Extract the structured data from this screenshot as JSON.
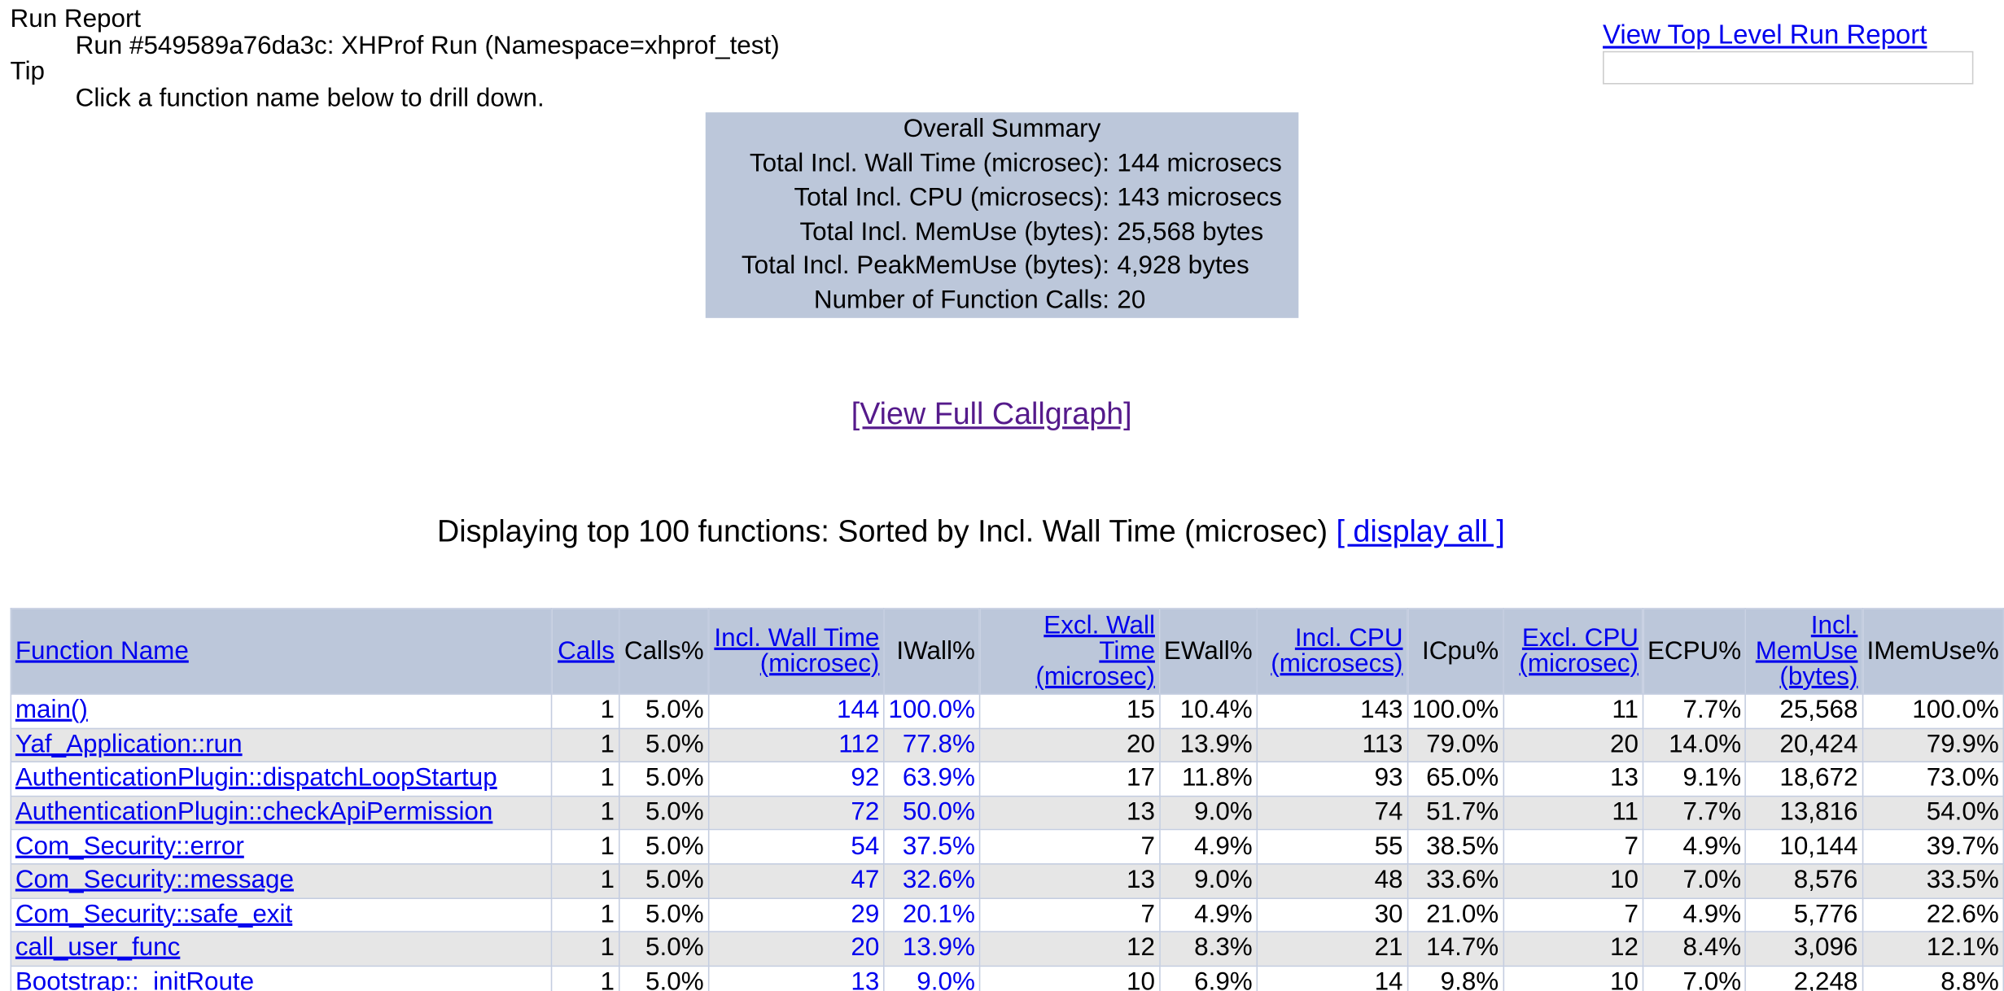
{
  "header": {
    "run_report_label": "Run Report",
    "run_title": "Run #549589a76da3c: XHProf Run (Namespace=xhprof_test)",
    "tip_label": "Tip",
    "tip_text": "Click a function name below to drill down.",
    "top_level_link": "View Top Level Run Report"
  },
  "summary": {
    "title": "Overall Summary",
    "rows": [
      [
        "Total Incl. Wall Time (microsec):",
        "144 microsecs"
      ],
      [
        "Total Incl. CPU (microsecs):",
        "143 microsecs"
      ],
      [
        "Total Incl. MemUse (bytes):",
        "25,568 bytes"
      ],
      [
        "Total Incl. PeakMemUse (bytes):",
        "4,928 bytes"
      ],
      [
        "Number of Function Calls:",
        "20"
      ]
    ]
  },
  "callgraph_link": "[View Full Callgraph]",
  "display": {
    "text": "Displaying top 100 functions: Sorted by Incl. Wall Time (microsec)",
    "link": "[ display all ]"
  },
  "table": {
    "columns": [
      "Function Name",
      "Calls",
      "Calls%",
      "Incl. Wall Time (microsec)",
      "IWall%",
      "Excl. Wall Time (microsec)",
      "EWall%",
      "Incl. CPU (microsecs)",
      "ICpu%",
      "Excl. CPU (microsec)",
      "ECPU%",
      "Incl. MemUse (bytes)",
      "IMemUse%"
    ],
    "rows": [
      [
        "main()",
        "1",
        "5.0%",
        "144",
        "100.0%",
        "15",
        "10.4%",
        "143",
        "100.0%",
        "11",
        "7.7%",
        "25,568",
        "100.0%"
      ],
      [
        "Yaf_Application::run",
        "1",
        "5.0%",
        "112",
        "77.8%",
        "20",
        "13.9%",
        "113",
        "79.0%",
        "20",
        "14.0%",
        "20,424",
        "79.9%"
      ],
      [
        "AuthenticationPlugin::dispatchLoopStartup",
        "1",
        "5.0%",
        "92",
        "63.9%",
        "17",
        "11.8%",
        "93",
        "65.0%",
        "13",
        "9.1%",
        "18,672",
        "73.0%"
      ],
      [
        "AuthenticationPlugin::checkApiPermission",
        "1",
        "5.0%",
        "72",
        "50.0%",
        "13",
        "9.0%",
        "74",
        "51.7%",
        "11",
        "7.7%",
        "13,816",
        "54.0%"
      ],
      [
        "Com_Security::error",
        "1",
        "5.0%",
        "54",
        "37.5%",
        "7",
        "4.9%",
        "55",
        "38.5%",
        "7",
        "4.9%",
        "10,144",
        "39.7%"
      ],
      [
        "Com_Security::message",
        "1",
        "5.0%",
        "47",
        "32.6%",
        "13",
        "9.0%",
        "48",
        "33.6%",
        "10",
        "7.0%",
        "8,576",
        "33.5%"
      ],
      [
        "Com_Security::safe_exit",
        "1",
        "5.0%",
        "29",
        "20.1%",
        "7",
        "4.9%",
        "30",
        "21.0%",
        "7",
        "4.9%",
        "5,776",
        "22.6%"
      ],
      [
        "call_user_func",
        "1",
        "5.0%",
        "20",
        "13.9%",
        "12",
        "8.3%",
        "21",
        "14.7%",
        "12",
        "8.4%",
        "3,096",
        "12.1%"
      ],
      [
        "Bootstrap::_initRoute",
        "1",
        "5.0%",
        "13",
        "9.0%",
        "10",
        "6.9%",
        "14",
        "9.8%",
        "10",
        "7.0%",
        "2,248",
        "8.8%"
      ]
    ]
  }
}
